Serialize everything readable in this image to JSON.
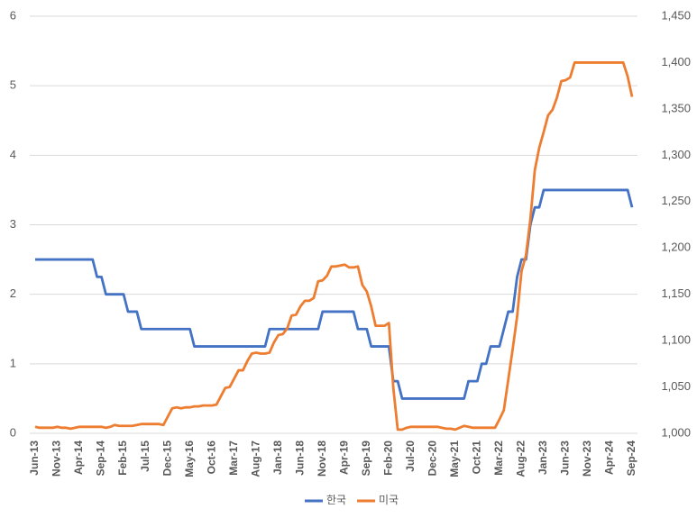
{
  "chart_data": {
    "type": "line",
    "categories": [
      "Jun-13",
      null,
      null,
      null,
      null,
      "Nov-13",
      null,
      null,
      null,
      null,
      "Apr-14",
      null,
      null,
      null,
      null,
      "Sep-14",
      null,
      null,
      null,
      null,
      "Feb-15",
      null,
      null,
      null,
      null,
      "Jul-15",
      null,
      null,
      null,
      null,
      "Dec-15",
      null,
      null,
      null,
      null,
      "May-16",
      null,
      null,
      null,
      null,
      "Oct-16",
      null,
      null,
      null,
      null,
      "Mar-17",
      null,
      null,
      null,
      null,
      "Aug-17",
      null,
      null,
      null,
      null,
      "Jan-18",
      null,
      null,
      null,
      null,
      "Jun-18",
      null,
      null,
      null,
      null,
      "Nov-18",
      null,
      null,
      null,
      null,
      "Apr-19",
      null,
      null,
      null,
      null,
      "Sep-19",
      null,
      null,
      null,
      null,
      "Feb-20",
      null,
      null,
      null,
      null,
      "Jul-20",
      null,
      null,
      null,
      null,
      "Dec-20",
      null,
      null,
      null,
      null,
      "May-21",
      null,
      null,
      null,
      null,
      "Oct-21",
      null,
      null,
      null,
      null,
      "Mar-22",
      null,
      null,
      null,
      null,
      "Aug-22",
      null,
      null,
      null,
      null,
      "Jan-23",
      null,
      null,
      null,
      null,
      "Jun-23",
      null,
      null,
      null,
      null,
      "Nov-23",
      null,
      null,
      null,
      null,
      "Apr-24",
      null,
      null,
      null,
      null,
      "Sep-24"
    ],
    "series": [
      {
        "name": "한국",
        "color": "#4472c4",
        "axis": "y",
        "values": [
          2.5,
          2.5,
          2.5,
          2.5,
          2.5,
          2.5,
          2.5,
          2.5,
          2.5,
          2.5,
          2.5,
          2.5,
          2.5,
          2.5,
          2.25,
          2.25,
          2.0,
          2.0,
          2.0,
          2.0,
          2.0,
          1.75,
          1.75,
          1.75,
          1.5,
          1.5,
          1.5,
          1.5,
          1.5,
          1.5,
          1.5,
          1.5,
          1.5,
          1.5,
          1.5,
          1.5,
          1.25,
          1.25,
          1.25,
          1.25,
          1.25,
          1.25,
          1.25,
          1.25,
          1.25,
          1.25,
          1.25,
          1.25,
          1.25,
          1.25,
          1.25,
          1.25,
          1.25,
          1.5,
          1.5,
          1.5,
          1.5,
          1.5,
          1.5,
          1.5,
          1.5,
          1.5,
          1.5,
          1.5,
          1.5,
          1.75,
          1.75,
          1.75,
          1.75,
          1.75,
          1.75,
          1.75,
          1.75,
          1.5,
          1.5,
          1.5,
          1.25,
          1.25,
          1.25,
          1.25,
          1.25,
          0.75,
          0.75,
          0.5,
          0.5,
          0.5,
          0.5,
          0.5,
          0.5,
          0.5,
          0.5,
          0.5,
          0.5,
          0.5,
          0.5,
          0.5,
          0.5,
          0.5,
          0.75,
          0.75,
          0.75,
          1.0,
          1.0,
          1.25,
          1.25,
          1.25,
          1.5,
          1.75,
          1.75,
          2.25,
          2.5,
          2.5,
          3.0,
          3.25,
          3.25,
          3.5,
          3.5,
          3.5,
          3.5,
          3.5,
          3.5,
          3.5,
          3.5,
          3.5,
          3.5,
          3.5,
          3.5,
          3.5,
          3.5,
          3.5,
          3.5,
          3.5,
          3.5,
          3.5,
          3.5,
          3.25
        ]
      },
      {
        "name": "미국",
        "color": "#ed7d31",
        "axis": "y2",
        "values": [
          1007,
          1006,
          1006,
          1006,
          1006,
          1007,
          1006,
          1006,
          1005,
          1006,
          1007,
          1007,
          1007,
          1007,
          1007,
          1007,
          1006,
          1007,
          1009,
          1008,
          1008,
          1008,
          1008,
          1009,
          1010,
          1010,
          1010,
          1010,
          1010,
          1009,
          1018,
          1027,
          1028,
          1027,
          1028,
          1028,
          1029,
          1029,
          1030,
          1030,
          1030,
          1031,
          1040,
          1049,
          1050,
          1059,
          1068,
          1068,
          1078,
          1086,
          1087,
          1086,
          1086,
          1087,
          1098,
          1106,
          1107,
          1113,
          1127,
          1128,
          1137,
          1143,
          1143,
          1146,
          1164,
          1165,
          1170,
          1180,
          1180,
          1181,
          1182,
          1179,
          1179,
          1180,
          1160,
          1153,
          1137,
          1116,
          1116,
          1116,
          1119,
          1049,
          1004,
          1004,
          1006,
          1007,
          1007,
          1007,
          1007,
          1007,
          1007,
          1007,
          1006,
          1005,
          1005,
          1004,
          1006,
          1008,
          1007,
          1006,
          1006,
          1006,
          1006,
          1006,
          1006,
          1015,
          1025,
          1058,
          1091,
          1126,
          1175,
          1192,
          1231,
          1284,
          1308,
          1325,
          1343,
          1349,
          1362,
          1380,
          1381,
          1384,
          1400,
          1400,
          1400,
          1400,
          1400,
          1400,
          1400,
          1400,
          1400,
          1400,
          1400,
          1400,
          1385,
          1363
        ]
      }
    ],
    "ylim": [
      0,
      6
    ],
    "yticks": [
      0,
      1,
      2,
      3,
      4,
      5,
      6
    ],
    "y2lim": [
      1000,
      1450
    ],
    "y2ticks": [
      {
        "value": 1000,
        "label": "1,000"
      },
      {
        "value": 1050,
        "label": "1,050"
      },
      {
        "value": 1100,
        "label": "1,100"
      },
      {
        "value": 1150,
        "label": "1,150"
      },
      {
        "value": 1200,
        "label": "1,200"
      },
      {
        "value": 1250,
        "label": "1,250"
      },
      {
        "value": 1300,
        "label": "1,300"
      },
      {
        "value": 1350,
        "label": "1,350"
      },
      {
        "value": 1400,
        "label": "1,400"
      },
      {
        "value": 1450,
        "label": "1,450"
      }
    ],
    "grid": true,
    "legend": "bottom"
  }
}
